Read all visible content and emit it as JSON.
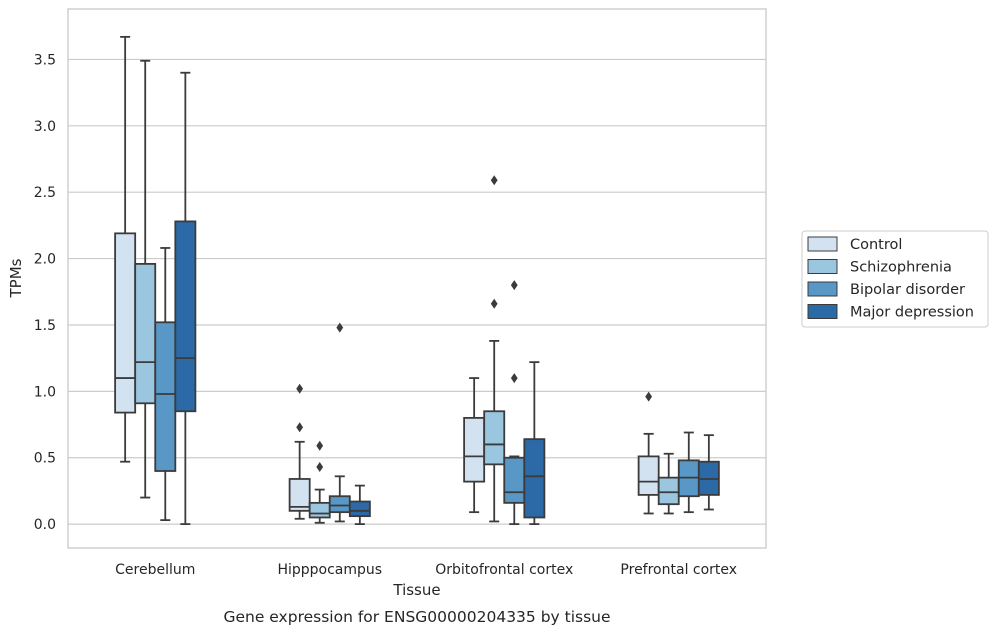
{
  "chart_data": {
    "type": "boxplot",
    "title": "",
    "caption": "Gene expression for ENSG00000204335 by tissue",
    "xlabel": "Tissue",
    "ylabel": "TPMs",
    "ylim": [
      -0.18,
      3.88
    ],
    "yticks": [
      "0.0",
      "0.5",
      "1.0",
      "1.5",
      "2.0",
      "2.5",
      "3.0",
      "3.5"
    ],
    "ytick_values": [
      0,
      0.5,
      1.0,
      1.5,
      2.0,
      2.5,
      3.0,
      3.5
    ],
    "grid": "horizontal",
    "legend_position": "right",
    "categories": [
      "Cerebellum",
      "Hipppocampus",
      "Orbitofrontal cortex",
      "Prefrontal cortex"
    ],
    "series": [
      {
        "name": "Control",
        "color": "#d2e2f1",
        "boxes": [
          {
            "whislo": 0.47,
            "q1": 0.84,
            "med": 1.1,
            "q3": 2.19,
            "whishi": 3.67,
            "fliers": []
          },
          {
            "whislo": 0.04,
            "q1": 0.1,
            "med": 0.13,
            "q3": 0.34,
            "whishi": 0.62,
            "fliers": [
              0.73,
              1.02
            ]
          },
          {
            "whislo": 0.09,
            "q1": 0.32,
            "med": 0.51,
            "q3": 0.8,
            "whishi": 1.1,
            "fliers": []
          },
          {
            "whislo": 0.08,
            "q1": 0.22,
            "med": 0.32,
            "q3": 0.51,
            "whishi": 0.68,
            "fliers": [
              0.96
            ]
          }
        ]
      },
      {
        "name": "Schizophrenia",
        "color": "#9bc6df",
        "boxes": [
          {
            "whislo": 0.2,
            "q1": 0.91,
            "med": 1.22,
            "q3": 1.96,
            "whishi": 3.49,
            "fliers": []
          },
          {
            "whislo": 0.01,
            "q1": 0.05,
            "med": 0.08,
            "q3": 0.16,
            "whishi": 0.26,
            "fliers": [
              0.43,
              0.59
            ]
          },
          {
            "whislo": 0.02,
            "q1": 0.45,
            "med": 0.6,
            "q3": 0.85,
            "whishi": 1.38,
            "fliers": [
              1.66,
              2.59
            ]
          },
          {
            "whislo": 0.08,
            "q1": 0.15,
            "med": 0.24,
            "q3": 0.35,
            "whishi": 0.53,
            "fliers": []
          }
        ]
      },
      {
        "name": "Bipolar disorder",
        "color": "#5897c6",
        "boxes": [
          {
            "whislo": 0.03,
            "q1": 0.4,
            "med": 0.98,
            "q3": 1.52,
            "whishi": 2.08,
            "fliers": []
          },
          {
            "whislo": 0.02,
            "q1": 0.09,
            "med": 0.14,
            "q3": 0.21,
            "whishi": 0.36,
            "fliers": [
              1.48
            ]
          },
          {
            "whislo": 0.0,
            "q1": 0.16,
            "med": 0.24,
            "q3": 0.5,
            "whishi": 0.51,
            "fliers": [
              1.1,
              1.8
            ]
          },
          {
            "whislo": 0.09,
            "q1": 0.21,
            "med": 0.35,
            "q3": 0.48,
            "whishi": 0.69,
            "fliers": []
          }
        ]
      },
      {
        "name": "Major depression",
        "color": "#2b6aa7",
        "boxes": [
          {
            "whislo": 0.0,
            "q1": 0.85,
            "med": 1.25,
            "q3": 2.28,
            "whishi": 3.4,
            "fliers": []
          },
          {
            "whislo": 0.0,
            "q1": 0.06,
            "med": 0.1,
            "q3": 0.17,
            "whishi": 0.29,
            "fliers": []
          },
          {
            "whislo": 0.0,
            "q1": 0.05,
            "med": 0.36,
            "q3": 0.64,
            "whishi": 1.22,
            "fliers": []
          },
          {
            "whislo": 0.11,
            "q1": 0.22,
            "med": 0.34,
            "q3": 0.47,
            "whishi": 0.67,
            "fliers": []
          }
        ]
      }
    ],
    "colors": {
      "grid": "#cccccc",
      "frame": "#cccccc",
      "box_edge": "#3b3b3b",
      "text": "#262626"
    }
  }
}
